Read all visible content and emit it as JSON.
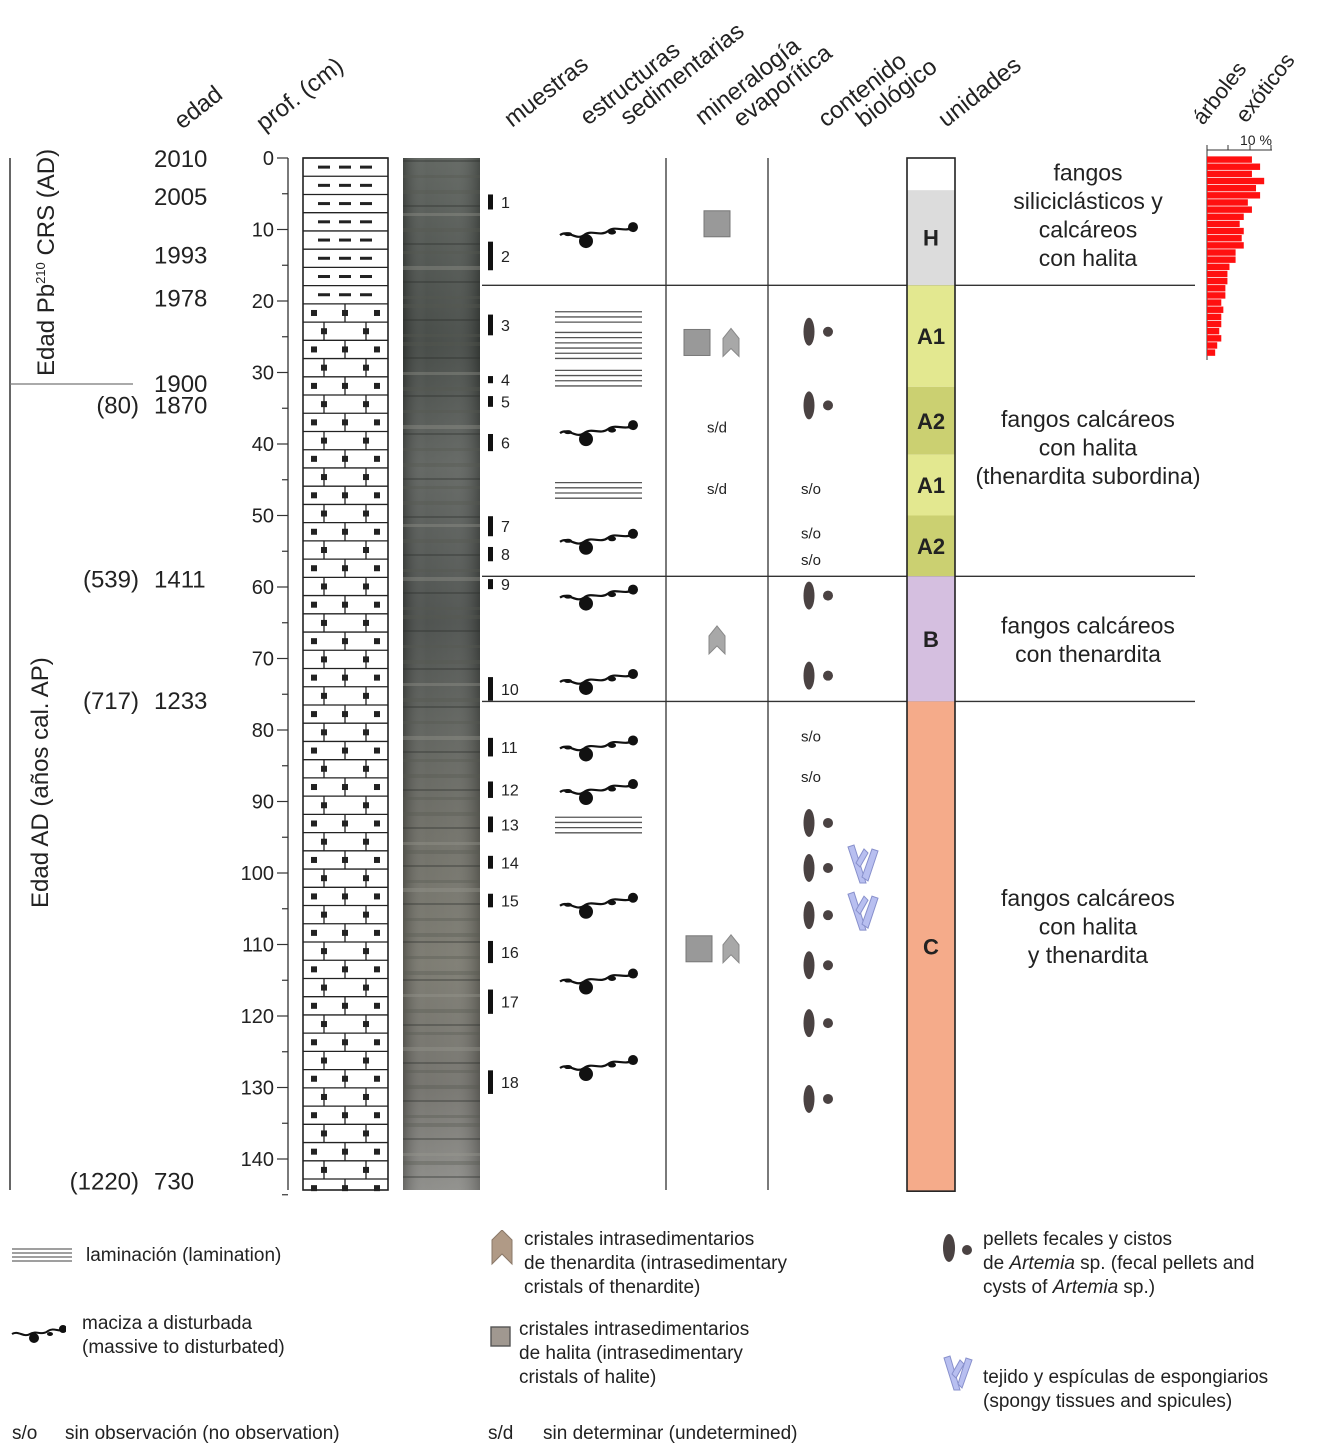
{
  "headers": {
    "edad": "edad",
    "prof": "prof. (cm)",
    "muestras": "muestras",
    "estructuras": [
      "estructuras",
      "sedimentarias"
    ],
    "mineralogia": [
      "mineralogía",
      "evaporítica"
    ],
    "contenido": [
      "contenido",
      "biológico"
    ],
    "unidades": "unidades",
    "arboles": [
      "árboles",
      "exóticos"
    ]
  },
  "pollen_scale": "10 %",
  "age_axis": {
    "pb_label": "Edad Pb",
    "pb_sup": "210",
    "pb_label_end": " CRS (AD)",
    "ap_label": "Edad AD (años cal. AP)"
  },
  "ages": [
    {
      "depth": 0,
      "label": "2010"
    },
    {
      "depth": 5.3,
      "label": "2005"
    },
    {
      "depth": 13.5,
      "label": "1993"
    },
    {
      "depth": 19.5,
      "label": "1978"
    },
    {
      "depth": 31.5,
      "label": "1900"
    },
    {
      "depth": 34.5,
      "bp": "(80)",
      "label": "1870"
    },
    {
      "depth": 58.8,
      "bp": "(539)",
      "label": "1411"
    },
    {
      "depth": 75.8,
      "bp": "(717)",
      "label": "1233"
    },
    {
      "depth": 143,
      "bp": "(1220)",
      "label": "730"
    }
  ],
  "depth_ticks": [
    "0",
    "10",
    "20",
    "30",
    "40",
    "50",
    "60",
    "70",
    "80",
    "90",
    "100",
    "110",
    "120",
    "130",
    "140"
  ],
  "samples": [
    {
      "id": "1",
      "top": 5.1,
      "bottom": 7.2
    },
    {
      "id": "2",
      "top": 11.7,
      "bottom": 15.7
    },
    {
      "id": "3",
      "top": 21.9,
      "bottom": 24.8
    },
    {
      "id": "4",
      "top": 30.5,
      "bottom": 31.5
    },
    {
      "id": "5",
      "top": 33.3,
      "bottom": 34.8
    },
    {
      "id": "6",
      "top": 38.6,
      "bottom": 41.0
    },
    {
      "id": "7",
      "top": 50.1,
      "bottom": 52.9
    },
    {
      "id": "8",
      "top": 54.4,
      "bottom": 56.4
    },
    {
      "id": "9",
      "top": 58.9,
      "bottom": 60.3
    },
    {
      "id": "10",
      "top": 72.6,
      "bottom": 75.9
    },
    {
      "id": "11",
      "top": 81.1,
      "bottom": 83.7
    },
    {
      "id": "12",
      "top": 87.2,
      "bottom": 89.5
    },
    {
      "id": "13",
      "top": 92.1,
      "bottom": 94.3
    },
    {
      "id": "14",
      "top": 97.6,
      "bottom": 99.4
    },
    {
      "id": "15",
      "top": 102.9,
      "bottom": 104.8
    },
    {
      "id": "16",
      "top": 109.5,
      "bottom": 112.6
    },
    {
      "id": "17",
      "top": 116.3,
      "bottom": 119.7
    },
    {
      "id": "18",
      "top": 127.6,
      "bottom": 130.9
    }
  ],
  "structures": [
    {
      "type": "massive",
      "depth": 10.5
    },
    {
      "type": "lamination",
      "depth": 21.5,
      "lines": 3
    },
    {
      "type": "lamination",
      "depth": 24.4,
      "lines": 6
    },
    {
      "type": "lamination",
      "depth": 29.7,
      "lines": 4
    },
    {
      "type": "massive",
      "depth": 38.2
    },
    {
      "type": "lamination",
      "depth": 45.4,
      "lines": 4
    },
    {
      "type": "massive",
      "depth": 53.4
    },
    {
      "type": "massive",
      "depth": 61.2
    },
    {
      "type": "massive",
      "depth": 73.0
    },
    {
      "type": "massive",
      "depth": 82.3
    },
    {
      "type": "massive",
      "depth": 88.4
    },
    {
      "type": "lamination",
      "depth": 92.2,
      "lines": 4
    },
    {
      "type": "massive",
      "depth": 104.3
    },
    {
      "type": "massive",
      "depth": 114.9
    },
    {
      "type": "massive",
      "depth": 127.0
    }
  ],
  "mineralogy": [
    {
      "type": "halite",
      "depth": 9.2,
      "offset": 0
    },
    {
      "type": "halite",
      "depth": 25.8,
      "offset": -20
    },
    {
      "type": "thenardite",
      "depth": 25.8,
      "offset": 14
    },
    {
      "type": "text",
      "depth": 37.7,
      "text": "s/d"
    },
    {
      "type": "text",
      "depth": 46.3,
      "text": "s/d"
    },
    {
      "type": "thenardite",
      "depth": 67.4,
      "offset": 0
    },
    {
      "type": "halite",
      "depth": 110.6,
      "offset": -18
    },
    {
      "type": "thenardite",
      "depth": 110.6,
      "offset": 14
    }
  ],
  "biological": [
    {
      "type": "pellets",
      "depth": 24.3
    },
    {
      "type": "pellets",
      "depth": 34.6
    },
    {
      "type": "text",
      "depth": 46.3,
      "text": "s/o"
    },
    {
      "type": "text",
      "depth": 52.5,
      "text": "s/o"
    },
    {
      "type": "text",
      "depth": 56.2,
      "text": "s/o"
    },
    {
      "type": "pellets",
      "depth": 61.2
    },
    {
      "type": "pellets",
      "depth": 72.4
    },
    {
      "type": "text",
      "depth": 80.9,
      "text": "s/o"
    },
    {
      "type": "text",
      "depth": 86.6,
      "text": "s/o"
    },
    {
      "type": "pellets",
      "depth": 93.0
    },
    {
      "type": "pellets",
      "depth": 99.3,
      "sponge": true
    },
    {
      "type": "pellets",
      "depth": 105.9,
      "sponge": true
    },
    {
      "type": "pellets",
      "depth": 112.9
    },
    {
      "type": "pellets",
      "depth": 121.0
    },
    {
      "type": "pellets",
      "depth": 131.6
    }
  ],
  "units": [
    {
      "label": "",
      "top": 0,
      "bottom": 4.5,
      "color": "#ffffff"
    },
    {
      "label": "H",
      "top": 4.5,
      "bottom": 17.8,
      "color": "#dcdcdc"
    },
    {
      "label": "A1",
      "top": 17.8,
      "bottom": 32.0,
      "color": "#e3e890"
    },
    {
      "label": "A2",
      "top": 32.0,
      "bottom": 41.5,
      "color": "#cbd071"
    },
    {
      "label": "A1",
      "top": 41.5,
      "bottom": 50.0,
      "color": "#e3e890"
    },
    {
      "label": "A2",
      "top": 50.0,
      "bottom": 58.5,
      "color": "#cbd071"
    },
    {
      "label": "B",
      "top": 58.5,
      "bottom": 76.0,
      "color": "#d5bfe0"
    },
    {
      "label": "C",
      "top": 76.0,
      "bottom": 144.5,
      "color": "#f5ab8a"
    }
  ],
  "descriptions": [
    {
      "depth": 8.0,
      "lines": [
        "fangos",
        "siliciclásticos y",
        "calcáreos",
        "con halita"
      ]
    },
    {
      "depth": 40.5,
      "lines": [
        "fangos calcáreos",
        "con halita",
        "(thenardita subordina)"
      ]
    },
    {
      "depth": 67.4,
      "lines": [
        "fangos calcáreos",
        "con thenardita"
      ]
    },
    {
      "depth": 107.5,
      "lines": [
        "fangos calcáreos",
        "con halita",
        "y thenardita"
      ]
    }
  ],
  "boundaries": [
    17.8,
    58.5,
    76.0
  ],
  "pollen": {
    "depths": [
      0.5,
      1.5,
      2.5,
      3.5,
      4.5,
      5.5,
      6.5,
      7.5,
      8.5,
      9.5,
      10.5,
      11.5,
      12.5,
      13.5,
      14.5,
      15.5,
      16.5,
      17.5,
      18.5,
      19.5,
      20.5,
      21.5,
      22.5,
      23.5,
      24.5,
      25.5,
      26.5,
      27.5
    ],
    "values": [
      11,
      13,
      11,
      14,
      12,
      13,
      10,
      11,
      9,
      8,
      9,
      8.5,
      9,
      7,
      7,
      5.5,
      5,
      5,
      4.5,
      4.5,
      3.5,
      4,
      3.5,
      3.5,
      3,
      3.5,
      2.5,
      2
    ],
    "max_tick": 10
  },
  "legend": {
    "lamination": "laminación (lamination)",
    "massive": [
      "maciza a disturbada",
      "(massive to disturbated)"
    ],
    "so_abbr": "s/o",
    "so_text": "sin observación (no observation)",
    "thenardite": [
      "cristales intrasedimentarios",
      "de thenardita (intrasedimentary",
      "cristals of thenardite)"
    ],
    "halite": [
      "cristales intrasedimentarios",
      "de halita (intrasedimentary",
      "cristals of halite)"
    ],
    "sd_abbr": "s/d",
    "sd_text": "sin determinar (undetermined)",
    "pellets_1": "pellets fecales y cistos",
    "pellets_2a": "de ",
    "pellets_2b": "Artemia",
    "pellets_2c": " sp. (fecal pellets and",
    "pellets_3a": "cysts of ",
    "pellets_3b": "Artemia",
    "pellets_3c": " sp.)",
    "sponge": [
      "tejido y espículas de espongiarios",
      "(spongy tissues and spicules)"
    ]
  },
  "colors": {
    "pollen_bar": "#ff1010",
    "halite": "#999999",
    "thenardite": "#a8a8a8",
    "sponge": "#b8bff0",
    "pellet": "#4a4242"
  }
}
